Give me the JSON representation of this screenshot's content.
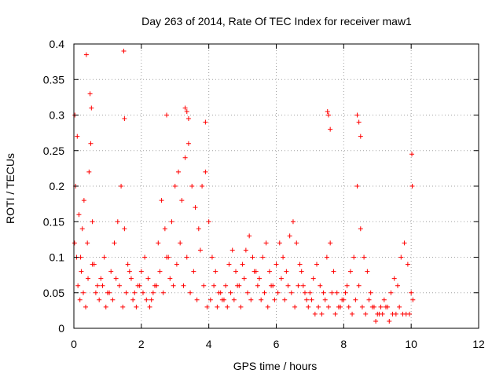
{
  "chart_data": {
    "type": "scatter",
    "title": "Day 263 of 2014, Rate Of TEC Index for receiver maw1",
    "xlabel": "GPS time / hours",
    "ylabel": "ROTI / TECUs",
    "xlim": [
      0,
      12
    ],
    "ylim": [
      0,
      0.4
    ],
    "x_ticks": [
      0,
      2,
      4,
      6,
      8,
      10,
      12
    ],
    "x_tick_labels": [
      "0",
      "2",
      "4",
      "6",
      "8",
      "10",
      "12"
    ],
    "y_ticks": [
      0,
      0.05,
      0.1,
      0.15,
      0.2,
      0.25,
      0.3,
      0.35,
      0.4
    ],
    "y_tick_labels": [
      "0",
      "0.05",
      "0.1",
      "0.15",
      "0.2",
      "0.25",
      "0.3",
      "0.35",
      "0.4"
    ],
    "grid": true,
    "marker": "+",
    "color": "#ff0000",
    "series": [
      {
        "name": "ROTI",
        "x": [
          0.02,
          0.05,
          0.1,
          0.15,
          0.2,
          0.25,
          0.3,
          0.4,
          0.45,
          0.5,
          0.55,
          0.6,
          0.7,
          0.8,
          0.9,
          1.0,
          1.1,
          1.2,
          1.3,
          1.4,
          1.5,
          1.6,
          1.7,
          1.8,
          1.9,
          2.0,
          2.1,
          2.2,
          2.3,
          2.4,
          2.5,
          2.6,
          2.7,
          2.8,
          2.9,
          3.0,
          3.1,
          3.2,
          3.3,
          3.4,
          3.5,
          3.6,
          3.7,
          3.8,
          3.9,
          4.0,
          4.1,
          4.2,
          4.3,
          4.4,
          4.5,
          4.6,
          4.7,
          4.8,
          4.9,
          5.0,
          5.1,
          5.2,
          5.3,
          5.4,
          5.5,
          5.6,
          5.7,
          5.8,
          5.9,
          6.0,
          6.1,
          6.2,
          6.3,
          6.4,
          6.5,
          6.6,
          6.7,
          6.8,
          6.9,
          7.0,
          7.1,
          7.2,
          7.3,
          7.4,
          7.5,
          7.6,
          7.7,
          7.8,
          7.9,
          8.0,
          8.1,
          8.2,
          8.3,
          8.4,
          8.5,
          8.6,
          8.7,
          8.8,
          8.9,
          9.0,
          9.1,
          9.2,
          9.3,
          9.4,
          9.5,
          9.6,
          9.7,
          9.8,
          9.9,
          10.0,
          10.05,
          0.08,
          0.12,
          0.18,
          0.22,
          0.28,
          0.35,
          0.42,
          0.55,
          0.65,
          0.75,
          0.85,
          0.95,
          1.05,
          1.15,
          1.25,
          1.35,
          1.45,
          1.55,
          1.65,
          1.75,
          1.85,
          1.95,
          2.05,
          2.15,
          2.25,
          2.35,
          2.45,
          2.55,
          2.65,
          2.75,
          2.85,
          2.95,
          3.05,
          3.15,
          3.25,
          3.35,
          3.45,
          3.55,
          3.65,
          3.75,
          3.85,
          3.95,
          4.05,
          4.15,
          4.25,
          4.35,
          4.45,
          4.55,
          4.65,
          4.75,
          4.85,
          4.95,
          5.05,
          5.15,
          5.25,
          5.35,
          5.45,
          5.55,
          5.65,
          5.75,
          5.85,
          5.95,
          6.05,
          6.15,
          6.25,
          6.35,
          6.45,
          6.55,
          6.65,
          6.75,
          6.85,
          6.95,
          7.05,
          7.15,
          7.25,
          7.35,
          7.45,
          7.55,
          7.65,
          7.75,
          7.85,
          7.95,
          8.05,
          8.15,
          8.25,
          8.35,
          8.45,
          8.55,
          8.65,
          8.75,
          8.85,
          8.95,
          9.05,
          9.15,
          9.25,
          9.35,
          9.45,
          9.55,
          9.65,
          9.75,
          9.85,
          9.95,
          0.03,
          0.37,
          0.48,
          0.52,
          1.48,
          1.5,
          2.75,
          3.3,
          3.35,
          3.4,
          3.9,
          7.52,
          7.55,
          7.6,
          8.4,
          8.45,
          8.5,
          10.02,
          10.03
        ],
        "y": [
          0.12,
          0.2,
          0.27,
          0.16,
          0.1,
          0.14,
          0.18,
          0.12,
          0.22,
          0.26,
          0.15,
          0.09,
          0.06,
          0.07,
          0.1,
          0.05,
          0.08,
          0.12,
          0.15,
          0.2,
          0.14,
          0.09,
          0.07,
          0.05,
          0.06,
          0.08,
          0.1,
          0.07,
          0.04,
          0.06,
          0.12,
          0.18,
          0.14,
          0.1,
          0.15,
          0.2,
          0.22,
          0.18,
          0.24,
          0.26,
          0.2,
          0.17,
          0.14,
          0.2,
          0.22,
          0.15,
          0.1,
          0.08,
          0.05,
          0.04,
          0.06,
          0.09,
          0.11,
          0.08,
          0.06,
          0.09,
          0.11,
          0.13,
          0.1,
          0.08,
          0.07,
          0.1,
          0.12,
          0.08,
          0.06,
          0.09,
          0.12,
          0.1,
          0.08,
          0.13,
          0.15,
          0.12,
          0.09,
          0.06,
          0.04,
          0.05,
          0.07,
          0.09,
          0.06,
          0.05,
          0.1,
          0.12,
          0.08,
          0.05,
          0.03,
          0.04,
          0.06,
          0.08,
          0.1,
          0.2,
          0.14,
          0.1,
          0.08,
          0.05,
          0.03,
          0.02,
          0.03,
          0.04,
          0.03,
          0.05,
          0.07,
          0.06,
          0.1,
          0.12,
          0.09,
          0.05,
          0.04,
          0.1,
          0.06,
          0.04,
          0.08,
          0.05,
          0.03,
          0.07,
          0.09,
          0.05,
          0.04,
          0.06,
          0.03,
          0.05,
          0.04,
          0.07,
          0.06,
          0.03,
          0.05,
          0.08,
          0.04,
          0.03,
          0.06,
          0.05,
          0.04,
          0.03,
          0.05,
          0.06,
          0.08,
          0.05,
          0.1,
          0.07,
          0.06,
          0.09,
          0.12,
          0.06,
          0.1,
          0.05,
          0.08,
          0.04,
          0.11,
          0.06,
          0.03,
          0.04,
          0.06,
          0.03,
          0.05,
          0.04,
          0.03,
          0.05,
          0.04,
          0.06,
          0.03,
          0.07,
          0.05,
          0.04,
          0.08,
          0.06,
          0.04,
          0.05,
          0.03,
          0.06,
          0.04,
          0.05,
          0.07,
          0.04,
          0.06,
          0.05,
          0.03,
          0.06,
          0.08,
          0.05,
          0.03,
          0.04,
          0.02,
          0.03,
          0.02,
          0.04,
          0.03,
          0.05,
          0.02,
          0.03,
          0.04,
          0.05,
          0.03,
          0.02,
          0.04,
          0.06,
          0.03,
          0.02,
          0.04,
          0.03,
          0.01,
          0.02,
          0.02,
          0.03,
          0.01,
          0.02,
          0.02,
          0.03,
          0.02,
          0.02,
          0.02,
          0.3,
          0.385,
          0.33,
          0.31,
          0.39,
          0.295,
          0.3,
          0.31,
          0.305,
          0.295,
          0.29,
          0.305,
          0.3,
          0.28,
          0.3,
          0.29,
          0.27,
          0.245,
          0.2
        ]
      }
    ]
  }
}
